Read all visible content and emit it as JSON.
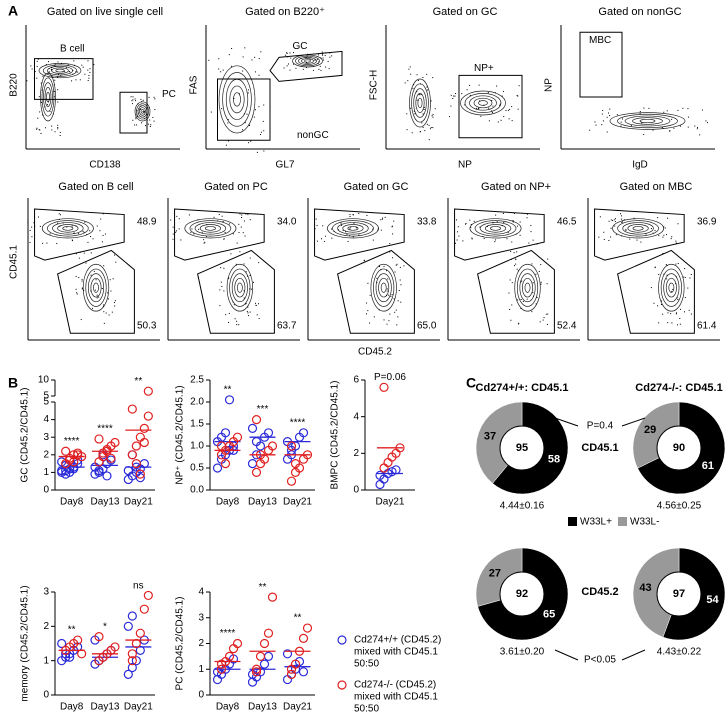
{
  "panel_labels": [
    "A",
    "B",
    "C"
  ],
  "flow_top": [
    {
      "title": "Gated on live single cell",
      "xlabel": "CD138",
      "ylabel": "B220",
      "gates": [
        "B cell",
        "PC"
      ]
    },
    {
      "title": "Gated on B220⁺",
      "xlabel": "GL7",
      "ylabel": "FAS",
      "gates": [
        "GC",
        "nonGC"
      ]
    },
    {
      "title": "Gated on GC",
      "xlabel": "NP",
      "ylabel": "FSC-H",
      "gates": [
        "NP+"
      ]
    },
    {
      "title": "Gated on nonGC",
      "xlabel": "IgD",
      "ylabel": "NP",
      "gates": [
        "MBC"
      ]
    }
  ],
  "flow_bottom": {
    "xlabel": "CD45.2",
    "ylabel": "CD45.1",
    "plots": [
      {
        "title": "Gated on B cell",
        "upper": "48.9",
        "lower": "50.3"
      },
      {
        "title": "Gated on PC",
        "upper": "34.0",
        "lower": "63.7"
      },
      {
        "title": "Gated on GC",
        "upper": "33.8",
        "lower": "65.0"
      },
      {
        "title": "Gated on NP+",
        "upper": "46.5",
        "lower": "52.4"
      },
      {
        "title": "Gated on MBC",
        "upper": "36.9",
        "lower": "61.4"
      }
    ]
  },
  "chart_data": [
    {
      "type": "strip",
      "ylabel": "GC (CD45.2/CD45.1)",
      "categories": [
        "Day8",
        "Day13",
        "Day21"
      ],
      "ylim": [
        0,
        5
      ],
      "yticks": [
        0,
        1,
        2,
        3,
        4,
        5
      ],
      "y_upper_lim": [
        5,
        10
      ],
      "y_upper_ticks": [
        5,
        10
      ],
      "annotations": [
        "****",
        "****",
        "**"
      ],
      "series": [
        {
          "color": "#2b2bd9",
          "values": [
            [
              1.0,
              1.1,
              1.2,
              1.3,
              1.5,
              1.6,
              1.4,
              1.0,
              1.2,
              1.7,
              1.1,
              0.9
            ],
            [
              0.9,
              1.0,
              1.2,
              1.5,
              1.7,
              1.3,
              1.1,
              2.0,
              0.8
            ],
            [
              0.6,
              0.8,
              1.0,
              1.2,
              1.5,
              1.1,
              2.0,
              1.3,
              0.7
            ]
          ],
          "means": [
            1.3,
            1.4,
            1.3
          ]
        },
        {
          "color": "#e02020",
          "values": [
            [
              1.5,
              1.8,
              2.0,
              2.1,
              1.9,
              2.2,
              1.7,
              1.6,
              2.0
            ],
            [
              1.6,
              1.9,
              2.2,
              2.5,
              2.7,
              2.9,
              2.1,
              2.3,
              1.8
            ],
            [
              2.0,
              2.5,
              3.0,
              3.5,
              4.2,
              4.6,
              1.5,
              0.9,
              2.7,
              6.5
            ]
          ],
          "means": [
            1.9,
            2.2,
            3.4
          ]
        }
      ]
    },
    {
      "type": "strip",
      "ylabel": "NP⁺ (CD45.2/CD45.1)",
      "categories": [
        "Day8",
        "Day13",
        "Day21"
      ],
      "ylim": [
        0,
        2.5
      ],
      "yticks": [
        {
          "value": 0,
          "label": "0.0"
        },
        {
          "value": 0.5,
          "label": "0.5"
        },
        {
          "value": 1,
          "label": "1.0"
        },
        {
          "value": 1.5,
          "label": "1.5"
        },
        {
          "value": 2,
          "label": "2.0"
        },
        {
          "value": 2.5,
          "label": "2.5"
        }
      ],
      "annotations": [
        "**",
        "***",
        "****"
      ],
      "series": [
        {
          "color": "#2b2bd9",
          "values": [
            [
              0.5,
              0.7,
              0.8,
              0.9,
              1.0,
              1.1,
              1.2,
              1.3,
              2.05,
              0.9
            ],
            [
              0.6,
              0.8,
              1.0,
              1.2,
              1.3,
              1.4,
              1.1
            ],
            [
              0.7,
              0.9,
              1.0,
              1.2,
              1.3,
              1.1,
              0.8
            ]
          ],
          "means": [
            1.1,
            1.2,
            1.1
          ]
        },
        {
          "color": "#e02020",
          "values": [
            [
              0.8,
              0.9,
              1.0,
              1.1,
              1.2,
              1.0,
              0.6
            ],
            [
              0.4,
              0.6,
              0.7,
              0.9,
              1.0,
              1.6,
              0.8
            ],
            [
              0.2,
              0.4,
              0.5,
              0.7,
              0.8,
              1.0,
              0.6
            ]
          ],
          "means": [
            0.9,
            0.8,
            0.8
          ]
        }
      ]
    },
    {
      "type": "strip",
      "ylabel": "BMPC (CD45.2/CD45.1)",
      "categories": [
        "Day21"
      ],
      "ylim": [
        0,
        6
      ],
      "yticks": [
        0,
        2,
        4,
        6
      ],
      "annotations": [
        "P=0.06"
      ],
      "series": [
        {
          "color": "#2b2bd9",
          "values": [
            [
              0.3,
              0.6,
              0.9,
              1.0,
              1.1,
              0.8
            ]
          ],
          "means": [
            0.9
          ]
        },
        {
          "color": "#e02020",
          "values": [
            [
              1.2,
              1.5,
              1.8,
              2.0,
              2.3,
              5.6
            ]
          ],
          "means": [
            2.3
          ]
        }
      ]
    },
    {
      "type": "strip",
      "ylabel": "memory (CD45.2/CD45.1)",
      "categories": [
        "Day8",
        "Day13",
        "Day21"
      ],
      "ylim": [
        0,
        3
      ],
      "yticks": [
        0,
        1,
        2,
        3
      ],
      "annotations": [
        "**",
        "*",
        "ns"
      ],
      "series": [
        {
          "color": "#2b2bd9",
          "values": [
            [
              1.0,
              1.1,
              1.2,
              1.3,
              1.4,
              1.5,
              1.2,
              1.1
            ],
            [
              0.9,
              1.0,
              1.1,
              1.2,
              1.3,
              1.6,
              1.0
            ],
            [
              0.6,
              0.8,
              1.0,
              1.3,
              1.6,
              2.0,
              2.3
            ]
          ],
          "means": [
            1.3,
            1.1,
            1.4
          ]
        },
        {
          "color": "#e02020",
          "values": [
            [
              1.3,
              1.4,
              1.5,
              1.6,
              1.2
            ],
            [
              1.0,
              1.1,
              1.2,
              1.3,
              1.4,
              1.7
            ],
            [
              1.0,
              1.5,
              1.8,
              2.5,
              2.9,
              1.2
            ]
          ],
          "means": [
            1.3,
            1.2,
            1.6
          ]
        }
      ]
    },
    {
      "type": "strip",
      "ylabel": "PC (CD45.2/CD45.1)",
      "categories": [
        "Day8",
        "Day13",
        "Day21"
      ],
      "ylim": [
        0,
        4
      ],
      "yticks": [
        0,
        1,
        2,
        3,
        4
      ],
      "annotations": [
        "****",
        "**",
        "**"
      ],
      "series": [
        {
          "color": "#2b2bd9",
          "values": [
            [
              0.6,
              0.8,
              1.0,
              1.2,
              1.4,
              0.9
            ],
            [
              0.5,
              0.7,
              0.9,
              1.2,
              1.5,
              0.8
            ],
            [
              0.6,
              0.8,
              1.0,
              1.3,
              0.9,
              1.6
            ]
          ],
          "means": [
            1.0,
            1.0,
            1.1
          ]
        },
        {
          "color": "#e02020",
          "values": [
            [
              1.0,
              1.3,
              1.5,
              1.8,
              2.0,
              1.2
            ],
            [
              1.0,
              1.5,
              2.0,
              2.4,
              3.8,
              0.9
            ],
            [
              0.8,
              1.2,
              1.7,
              2.2,
              2.6,
              1.0
            ]
          ],
          "means": [
            1.3,
            1.7,
            1.7
          ]
        }
      ]
    },
    {
      "type": "donut",
      "title": "Cd274+/+: CD45.1",
      "values": [
        58,
        37
      ],
      "colors": [
        "#000000",
        "#999999"
      ],
      "center_value": 95,
      "note": "4.44±0.16"
    },
    {
      "type": "donut",
      "title": "Cd274-/-: CD45.1",
      "values": [
        61,
        29
      ],
      "colors": [
        "#000000",
        "#999999"
      ],
      "center_value": 90,
      "note": "4.56±0.25"
    },
    {
      "type": "donut",
      "values": [
        65,
        27
      ],
      "colors": [
        "#000000",
        "#999999"
      ],
      "center_value": 92,
      "note": "3.61±0.20"
    },
    {
      "type": "donut",
      "values": [
        54,
        43
      ],
      "colors": [
        "#000000",
        "#999999"
      ],
      "center_value": 97,
      "note": "4.43±0.22"
    }
  ],
  "strip_legend": [
    {
      "color": "#2b2bd9",
      "lines": [
        "Cd274+/+ (CD45.2)",
        "mixed with CD45.1",
        "50:50"
      ]
    },
    {
      "color": "#e02020",
      "lines": [
        "Cd274-/- (CD45.2)",
        "mixed with CD45.1",
        "50:50"
      ]
    }
  ],
  "donut_rows": [
    "CD45.1",
    "CD45.2"
  ],
  "donut_p": [
    "P=0.4",
    "P<0.05"
  ],
  "donut_legend": [
    {
      "label": "W33L+",
      "color": "#000000"
    },
    {
      "label": "W33L-",
      "color": "#999999"
    }
  ]
}
